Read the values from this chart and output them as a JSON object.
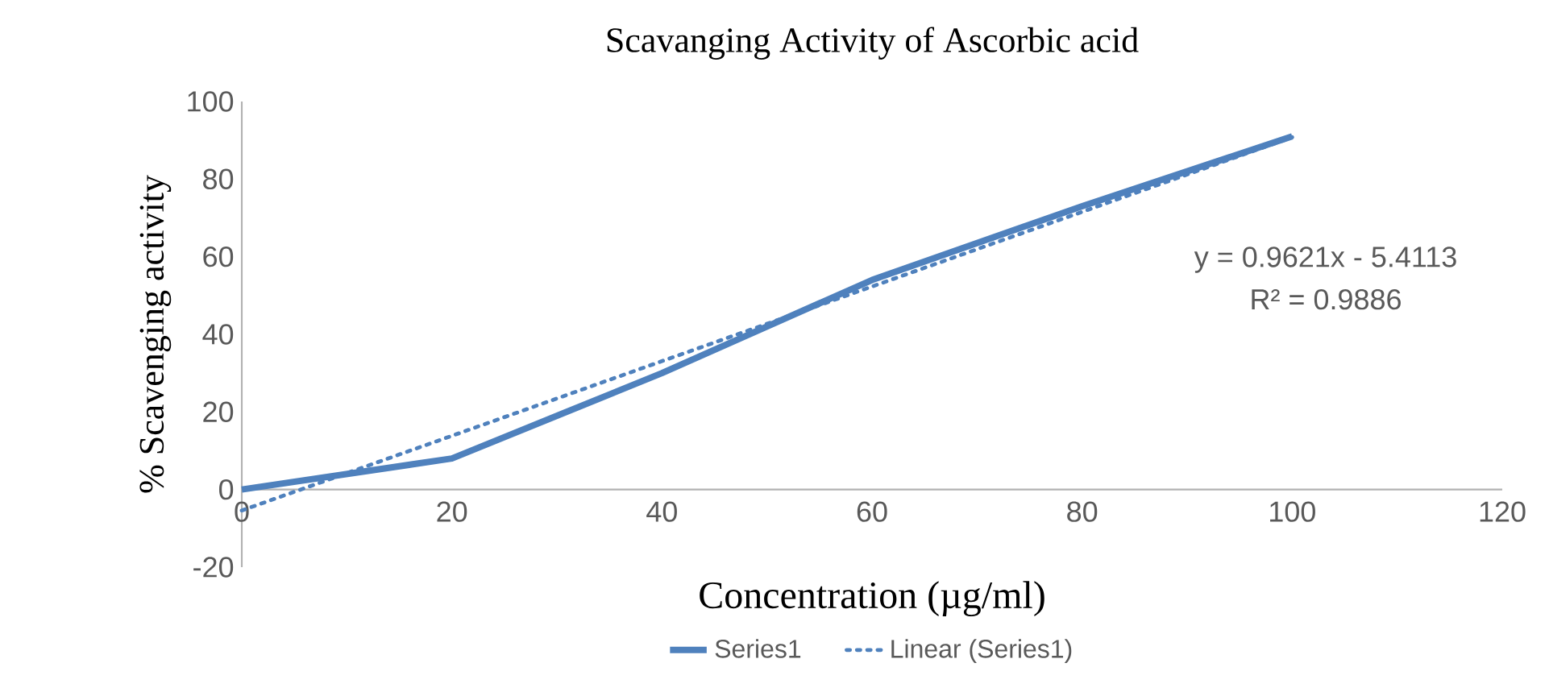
{
  "chart_data": {
    "type": "line",
    "title": "Scavanging Activity of Ascorbic acid",
    "xlabel": "Concentration (µg/ml)",
    "ylabel": "% Scavenging activity",
    "x": [
      0,
      20,
      40,
      60,
      80,
      100
    ],
    "series": [
      {
        "name": "Series1",
        "color": "#4f81bd",
        "values": [
          0,
          8,
          30,
          54,
          73,
          91
        ],
        "line_style": "solid"
      },
      {
        "name": "Linear (Series1)",
        "color": "#4f81bd",
        "x": [
          0,
          100
        ],
        "values": [
          -5.4,
          90.8
        ],
        "line_style": "dotted"
      }
    ],
    "xlim": [
      0,
      120
    ],
    "xticks": [
      0,
      20,
      40,
      60,
      80,
      100,
      120
    ],
    "ylim": [
      -20,
      100
    ],
    "yticks": [
      -20,
      0,
      20,
      40,
      60,
      80,
      100
    ],
    "annotations": [
      "y = 0.9621x - 5.4113",
      "R² = 0.9886"
    ],
    "legend": "bottom",
    "marker": "none",
    "grid": false
  }
}
